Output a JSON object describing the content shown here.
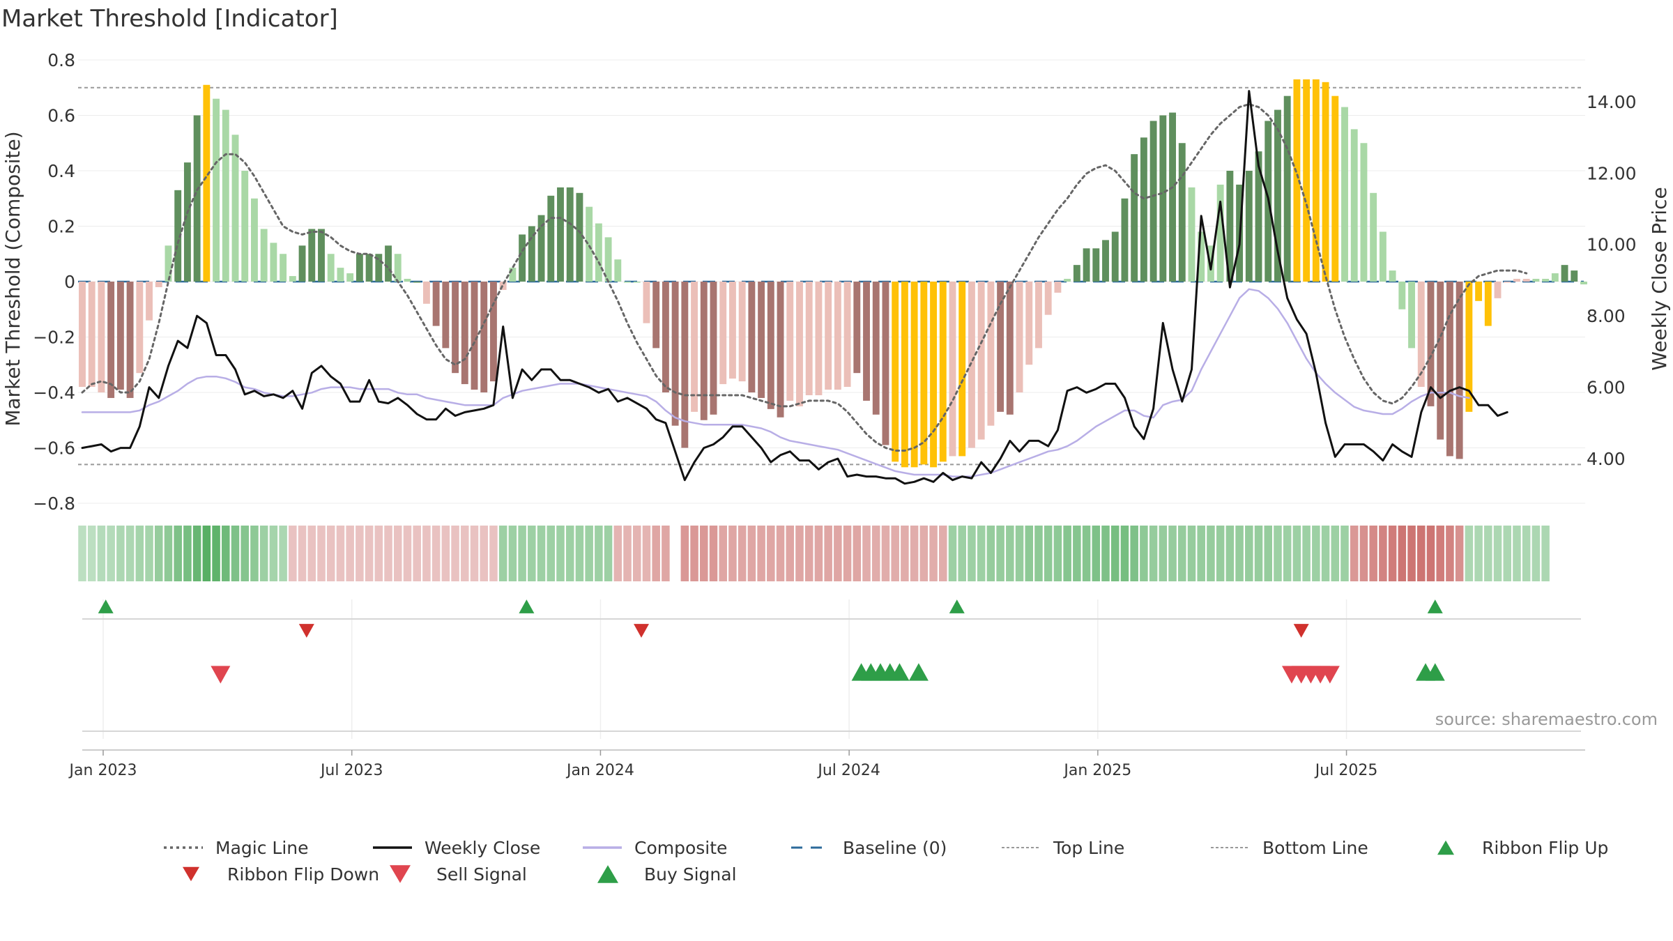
{
  "title": "Market Threshold [Indicator]",
  "source": "source: sharemaestro.com",
  "colors": {
    "magic_line": "#666666",
    "weekly_close": "#111111",
    "composite": "#b8aee6",
    "baseline": "#2c6a9a",
    "top_line": "#999999",
    "bottom_line": "#999999",
    "bar_pos_dark": "#5f8f5d",
    "bar_pos_light": "#a9d8a6",
    "bar_neg_dark": "#a87570",
    "bar_neg_light": "#ebbfb8",
    "bar_extreme": "#ffc107",
    "ribbon_green": "#3fa34d",
    "ribbon_red": "#c0504d",
    "flip_up": "#2e9e48",
    "flip_down": "#d0312d",
    "sell": "#e0454f",
    "buy": "#2e9e48"
  },
  "chart_data": {
    "type": "bar",
    "x_type": "weekly",
    "start_date": "Jan 2023",
    "left_axis": {
      "label": "Market Threshold (Composite)",
      "ylim": [
        -0.8,
        0.8
      ],
      "ticks": [
        "0.8",
        "0.6",
        "0.4",
        "0.2",
        "0",
        "−0.2",
        "−0.4",
        "−0.6",
        "−0.8"
      ]
    },
    "right_axis": {
      "label": "Weekly Close Price",
      "ylim": [
        2.75,
        15.17
      ],
      "ticks": [
        "14.00",
        "12.00",
        "10.00",
        "8.00",
        "6.00",
        "4.00"
      ]
    },
    "x_ticks": [
      "Jan 2023",
      "Jul 2023",
      "Jan 2024",
      "Jul 2024",
      "Jan 2025",
      "Jul 2025"
    ],
    "top_line": 0.7,
    "bottom_line": -0.66,
    "baseline": 0,
    "composite_bars": [
      -0.38,
      -0.38,
      -0.4,
      -0.42,
      -0.39,
      -0.42,
      -0.33,
      -0.14,
      -0.02,
      0.13,
      0.33,
      0.43,
      0.6,
      0.71,
      0.66,
      0.62,
      0.53,
      0.4,
      0.3,
      0.19,
      0.14,
      0.1,
      0.02,
      0.13,
      0.19,
      0.19,
      0.1,
      0.05,
      0.03,
      0.1,
      0.1,
      0.1,
      0.13,
      0.1,
      0.01,
      0,
      -0.08,
      -0.16,
      -0.24,
      -0.33,
      -0.37,
      -0.39,
      -0.4,
      -0.36,
      -0.03,
      0.05,
      0.17,
      0.2,
      0.24,
      0.31,
      0.34,
      0.34,
      0.32,
      0.27,
      0.21,
      0.16,
      0.08,
      0,
      0,
      -0.15,
      -0.24,
      -0.4,
      -0.52,
      -0.6,
      -0.47,
      -0.5,
      -0.48,
      -0.37,
      -0.35,
      -0.36,
      -0.4,
      -0.42,
      -0.46,
      -0.49,
      -0.43,
      -0.45,
      -0.41,
      -0.41,
      -0.39,
      -0.39,
      -0.38,
      -0.33,
      -0.43,
      -0.48,
      -0.59,
      -0.65,
      -0.67,
      -0.67,
      -0.66,
      -0.67,
      -0.65,
      -0.63,
      -0.63,
      -0.6,
      -0.57,
      -0.52,
      -0.47,
      -0.48,
      -0.4,
      -0.3,
      -0.24,
      -0.12,
      -0.04,
      0.01,
      0.06,
      0.12,
      0.12,
      0.15,
      0.18,
      0.3,
      0.46,
      0.52,
      0.58,
      0.6,
      0.61,
      0.5,
      0.34,
      0.18,
      0.13,
      0.35,
      0.4,
      0.35,
      0.4,
      0.47,
      0.58,
      0.62,
      0.67,
      0.73,
      0.73,
      0.73,
      0.72,
      0.67,
      0.63,
      0.55,
      0.5,
      0.32,
      0.18,
      0.04,
      -0.1,
      -0.24,
      -0.38,
      -0.45,
      -0.57,
      -0.63,
      -0.64,
      -0.47,
      -0.07,
      -0.16,
      -0.06,
      0,
      0.01,
      0.01,
      0.01,
      0.01,
      0.03,
      0.06,
      0.04,
      -0.01
    ],
    "bar_style": [
      "nl",
      "nl",
      "nl",
      "nd",
      "nd",
      "nd",
      "nl",
      "nl",
      "nl",
      "pl",
      "pd",
      "pd",
      "pd",
      "x",
      "pl",
      "pl",
      "pl",
      "pl",
      "pl",
      "pl",
      "pl",
      "pl",
      "pl",
      "pd",
      "pd",
      "pd",
      "pl",
      "pl",
      "pl",
      "pd",
      "pd",
      "pd",
      "pd",
      "pl",
      "pl",
      "pd",
      "nl",
      "nd",
      "nd",
      "nd",
      "nd",
      "nd",
      "nd",
      "nd",
      "nl",
      "pl",
      "pd",
      "pd",
      "pd",
      "pd",
      "pd",
      "pd",
      "pd",
      "pl",
      "pl",
      "pl",
      "pl",
      "pl",
      "pl",
      "nl",
      "nd",
      "nd",
      "nd",
      "nd",
      "nl",
      "nd",
      "nd",
      "nl",
      "nl",
      "nl",
      "nd",
      "nd",
      "nd",
      "nd",
      "nl",
      "nl",
      "nl",
      "nl",
      "nl",
      "nl",
      "nl",
      "nd",
      "nd",
      "nd",
      "nd",
      "x",
      "x",
      "x",
      "x",
      "x",
      "x",
      "nl",
      "x",
      "nl",
      "nl",
      "nl",
      "nd",
      "nd",
      "nl",
      "nl",
      "nl",
      "nl",
      "nl",
      "pl",
      "pd",
      "pd",
      "pd",
      "pd",
      "pd",
      "pd",
      "pd",
      "pd",
      "pd",
      "pd",
      "pd",
      "pd",
      "pl",
      "pl",
      "pl",
      "pl",
      "pd",
      "pd",
      "pd",
      "pd",
      "pd",
      "pd",
      "pd",
      "x",
      "x",
      "x",
      "x",
      "x",
      "pl",
      "pl",
      "pl",
      "pl",
      "pl",
      "pl",
      "pl",
      "pl",
      "nl",
      "nd",
      "nd",
      "nd",
      "nd",
      "x",
      "x",
      "x",
      "nl",
      "nl",
      "nl",
      "nl",
      "pl",
      "pl",
      "pl",
      "pd",
      "pd",
      "pl",
      "nl"
    ],
    "magic_line": [
      -0.4,
      -0.37,
      -0.36,
      -0.37,
      -0.4,
      -0.4,
      -0.36,
      -0.28,
      -0.15,
      0,
      0.14,
      0.25,
      0.33,
      0.38,
      0.43,
      0.46,
      0.46,
      0.43,
      0.38,
      0.32,
      0.26,
      0.2,
      0.18,
      0.17,
      0.18,
      0.18,
      0.16,
      0.13,
      0.11,
      0.1,
      0.1,
      0.08,
      0.05,
      0,
      -0.05,
      -0.11,
      -0.17,
      -0.23,
      -0.28,
      -0.3,
      -0.28,
      -0.22,
      -0.15,
      -0.08,
      -0.01,
      0.05,
      0.11,
      0.16,
      0.2,
      0.23,
      0.23,
      0.21,
      0.18,
      0.13,
      0.07,
      0,
      -0.07,
      -0.15,
      -0.22,
      -0.28,
      -0.34,
      -0.38,
      -0.4,
      -0.41,
      -0.41,
      -0.41,
      -0.41,
      -0.41,
      -0.41,
      -0.41,
      -0.42,
      -0.43,
      -0.44,
      -0.45,
      -0.45,
      -0.44,
      -0.43,
      -0.43,
      -0.43,
      -0.44,
      -0.47,
      -0.51,
      -0.55,
      -0.58,
      -0.6,
      -0.61,
      -0.61,
      -0.6,
      -0.58,
      -0.54,
      -0.49,
      -0.43,
      -0.36,
      -0.29,
      -0.22,
      -0.15,
      -0.08,
      -0.02,
      0.04,
      0.1,
      0.16,
      0.21,
      0.26,
      0.3,
      0.35,
      0.39,
      0.41,
      0.42,
      0.4,
      0.36,
      0.32,
      0.3,
      0.31,
      0.32,
      0.34,
      0.38,
      0.43,
      0.48,
      0.53,
      0.57,
      0.6,
      0.63,
      0.64,
      0.63,
      0.6,
      0.55,
      0.48,
      0.39,
      0.28,
      0.15,
      0.02,
      -0.1,
      -0.2,
      -0.28,
      -0.35,
      -0.4,
      -0.43,
      -0.44,
      -0.42,
      -0.38,
      -0.33,
      -0.27,
      -0.2,
      -0.12,
      -0.06,
      -0.01,
      0.02,
      0.03,
      0.04,
      0.04,
      0.04,
      0.03
    ],
    "weekly_close": [
      4.3,
      4.35,
      4.4,
      4.2,
      4.3,
      4.3,
      4.9,
      6.0,
      5.7,
      6.6,
      7.3,
      7.1,
      8.0,
      7.8,
      6.9,
      6.9,
      6.5,
      5.8,
      5.9,
      5.75,
      5.8,
      5.7,
      5.9,
      5.4,
      6.4,
      6.6,
      6.3,
      6.1,
      5.6,
      5.6,
      6.2,
      5.6,
      5.55,
      5.7,
      5.5,
      5.25,
      5.1,
      5.1,
      5.4,
      5.2,
      5.3,
      5.35,
      5.4,
      5.5,
      7.7,
      5.7,
      6.5,
      6.2,
      6.5,
      6.5,
      6.2,
      6.2,
      6.1,
      6.0,
      5.85,
      5.95,
      5.6,
      5.7,
      5.55,
      5.4,
      5.1,
      5.0,
      4.2,
      3.4,
      3.9,
      4.3,
      4.4,
      4.6,
      4.9,
      4.9,
      4.6,
      4.3,
      3.9,
      4.1,
      4.2,
      3.95,
      3.95,
      3.7,
      3.9,
      4.0,
      3.5,
      3.55,
      3.5,
      3.5,
      3.45,
      3.45,
      3.3,
      3.35,
      3.45,
      3.35,
      3.6,
      3.4,
      3.5,
      3.45,
      3.9,
      3.6,
      4.0,
      4.5,
      4.2,
      4.5,
      4.5,
      4.35,
      4.8,
      5.9,
      6.0,
      5.85,
      5.95,
      6.1,
      6.1,
      5.7,
      4.9,
      4.55,
      5.4,
      7.8,
      6.5,
      5.6,
      6.5,
      10.8,
      9.3,
      11.2,
      8.8,
      10.0,
      14.3,
      12.2,
      11.3,
      9.8,
      8.5,
      7.9,
      7.5,
      6.4,
      5.0,
      4.05,
      4.4,
      4.4,
      4.4,
      4.2,
      3.95,
      4.4,
      4.2,
      4.05,
      5.3,
      6.0,
      5.7,
      5.9,
      6.0,
      5.9,
      5.5,
      5.5,
      5.2,
      5.3
    ],
    "composite_line_right_axis": [
      5.3,
      5.3,
      5.3,
      5.3,
      5.3,
      5.3,
      5.35,
      5.5,
      5.6,
      5.75,
      5.9,
      6.1,
      6.25,
      6.3,
      6.3,
      6.25,
      6.15,
      6.0,
      5.95,
      5.85,
      5.8,
      5.75,
      5.75,
      5.8,
      5.85,
      5.95,
      6.0,
      6.0,
      6.0,
      5.95,
      5.95,
      5.95,
      5.95,
      5.85,
      5.8,
      5.8,
      5.7,
      5.65,
      5.6,
      5.55,
      5.5,
      5.5,
      5.5,
      5.5,
      5.7,
      5.8,
      5.9,
      5.95,
      6.0,
      6.05,
      6.1,
      6.1,
      6.1,
      6.05,
      6.0,
      5.95,
      5.9,
      5.85,
      5.8,
      5.75,
      5.6,
      5.35,
      5.15,
      5.05,
      5.0,
      4.95,
      4.95,
      4.95,
      4.95,
      4.95,
      4.9,
      4.85,
      4.75,
      4.6,
      4.5,
      4.45,
      4.4,
      4.35,
      4.3,
      4.25,
      4.15,
      4.05,
      3.95,
      3.85,
      3.75,
      3.65,
      3.6,
      3.55,
      3.55,
      3.55,
      3.55,
      3.5,
      3.5,
      3.5,
      3.55,
      3.6,
      3.7,
      3.8,
      3.9,
      4.0,
      4.1,
      4.2,
      4.25,
      4.35,
      4.5,
      4.7,
      4.9,
      5.05,
      5.2,
      5.35,
      5.35,
      5.2,
      5.15,
      5.5,
      5.6,
      5.65,
      5.9,
      6.5,
      7.0,
      7.5,
      8.0,
      8.5,
      8.75,
      8.7,
      8.5,
      8.2,
      7.8,
      7.3,
      6.8,
      6.4,
      6.1,
      5.85,
      5.65,
      5.45,
      5.35,
      5.3,
      5.25,
      5.25,
      5.4,
      5.6,
      5.75,
      5.85,
      5.85,
      5.85,
      5.75,
      5.7
    ],
    "ribbon": [
      0.25,
      0.25,
      0.3,
      0.3,
      0.35,
      0.35,
      0.4,
      0.4,
      0.5,
      0.55,
      0.65,
      0.7,
      0.8,
      0.9,
      0.85,
      0.75,
      0.65,
      0.6,
      0.55,
      0.45,
      0.4,
      0.35,
      -0.25,
      -0.25,
      -0.25,
      -0.25,
      -0.25,
      -0.25,
      -0.25,
      -0.25,
      -0.25,
      -0.25,
      -0.25,
      -0.25,
      -0.25,
      -0.25,
      -0.25,
      -0.25,
      -0.25,
      -0.25,
      -0.25,
      -0.25,
      -0.25,
      -0.25,
      0.45,
      0.45,
      0.45,
      0.45,
      0.45,
      0.45,
      0.45,
      0.45,
      0.45,
      0.45,
      0.45,
      0.45,
      -0.35,
      -0.35,
      -0.35,
      -0.35,
      -0.45,
      -0.45,
      null,
      -0.55,
      -0.55,
      -0.55,
      -0.55,
      -0.45,
      -0.45,
      -0.45,
      -0.45,
      -0.45,
      -0.45,
      -0.45,
      -0.45,
      -0.45,
      -0.45,
      -0.45,
      -0.45,
      -0.45,
      -0.45,
      -0.45,
      -0.4,
      -0.4,
      -0.4,
      -0.4,
      -0.4,
      -0.4,
      -0.4,
      -0.4,
      -0.4,
      0.45,
      0.45,
      0.45,
      0.45,
      0.5,
      0.5,
      0.5,
      0.5,
      0.55,
      0.55,
      0.55,
      0.55,
      0.6,
      0.6,
      0.6,
      0.65,
      0.65,
      0.7,
      0.7,
      0.65,
      0.55,
      0.5,
      0.5,
      0.5,
      0.5,
      0.5,
      0.5,
      0.5,
      0.5,
      0.5,
      0.5,
      0.5,
      0.5,
      0.5,
      0.45,
      0.45,
      0.45,
      0.45,
      0.45,
      0.45,
      0.45,
      0.45,
      -0.55,
      -0.6,
      -0.65,
      -0.7,
      -0.75,
      -0.8,
      -0.8,
      -0.8,
      -0.8,
      -0.75,
      -0.7,
      -0.6,
      0.35,
      0.35,
      0.35,
      0.35,
      0.35,
      0.35,
      0.35,
      0.35,
      0.35
    ],
    "ribbon_flip_up_weeks": [
      1,
      45,
      90,
      140
    ],
    "ribbon_flip_down_weeks": [
      22,
      57,
      126
    ],
    "sell_signal_weeks": [
      13,
      125,
      126,
      127,
      128,
      129
    ],
    "buy_signal_weeks": [
      80,
      81,
      82,
      83,
      84,
      86,
      139,
      140
    ],
    "legend": [
      {
        "label": "Magic Line",
        "symbol": "dotted"
      },
      {
        "label": "Weekly Close",
        "symbol": "solid"
      },
      {
        "label": "Composite",
        "symbol": "composite"
      },
      {
        "label": "Baseline (0)",
        "symbol": "dashed"
      },
      {
        "label": "Top Line",
        "symbol": "dotted-light"
      },
      {
        "label": "Bottom Line",
        "symbol": "dotted-light"
      },
      {
        "label": "Ribbon Flip Up",
        "symbol": "tri-up-small"
      },
      {
        "label": "Ribbon Flip Down",
        "symbol": "tri-down-small"
      },
      {
        "label": "Sell Signal",
        "symbol": "tri-down"
      },
      {
        "label": "Buy Signal",
        "symbol": "tri-up"
      }
    ]
  }
}
